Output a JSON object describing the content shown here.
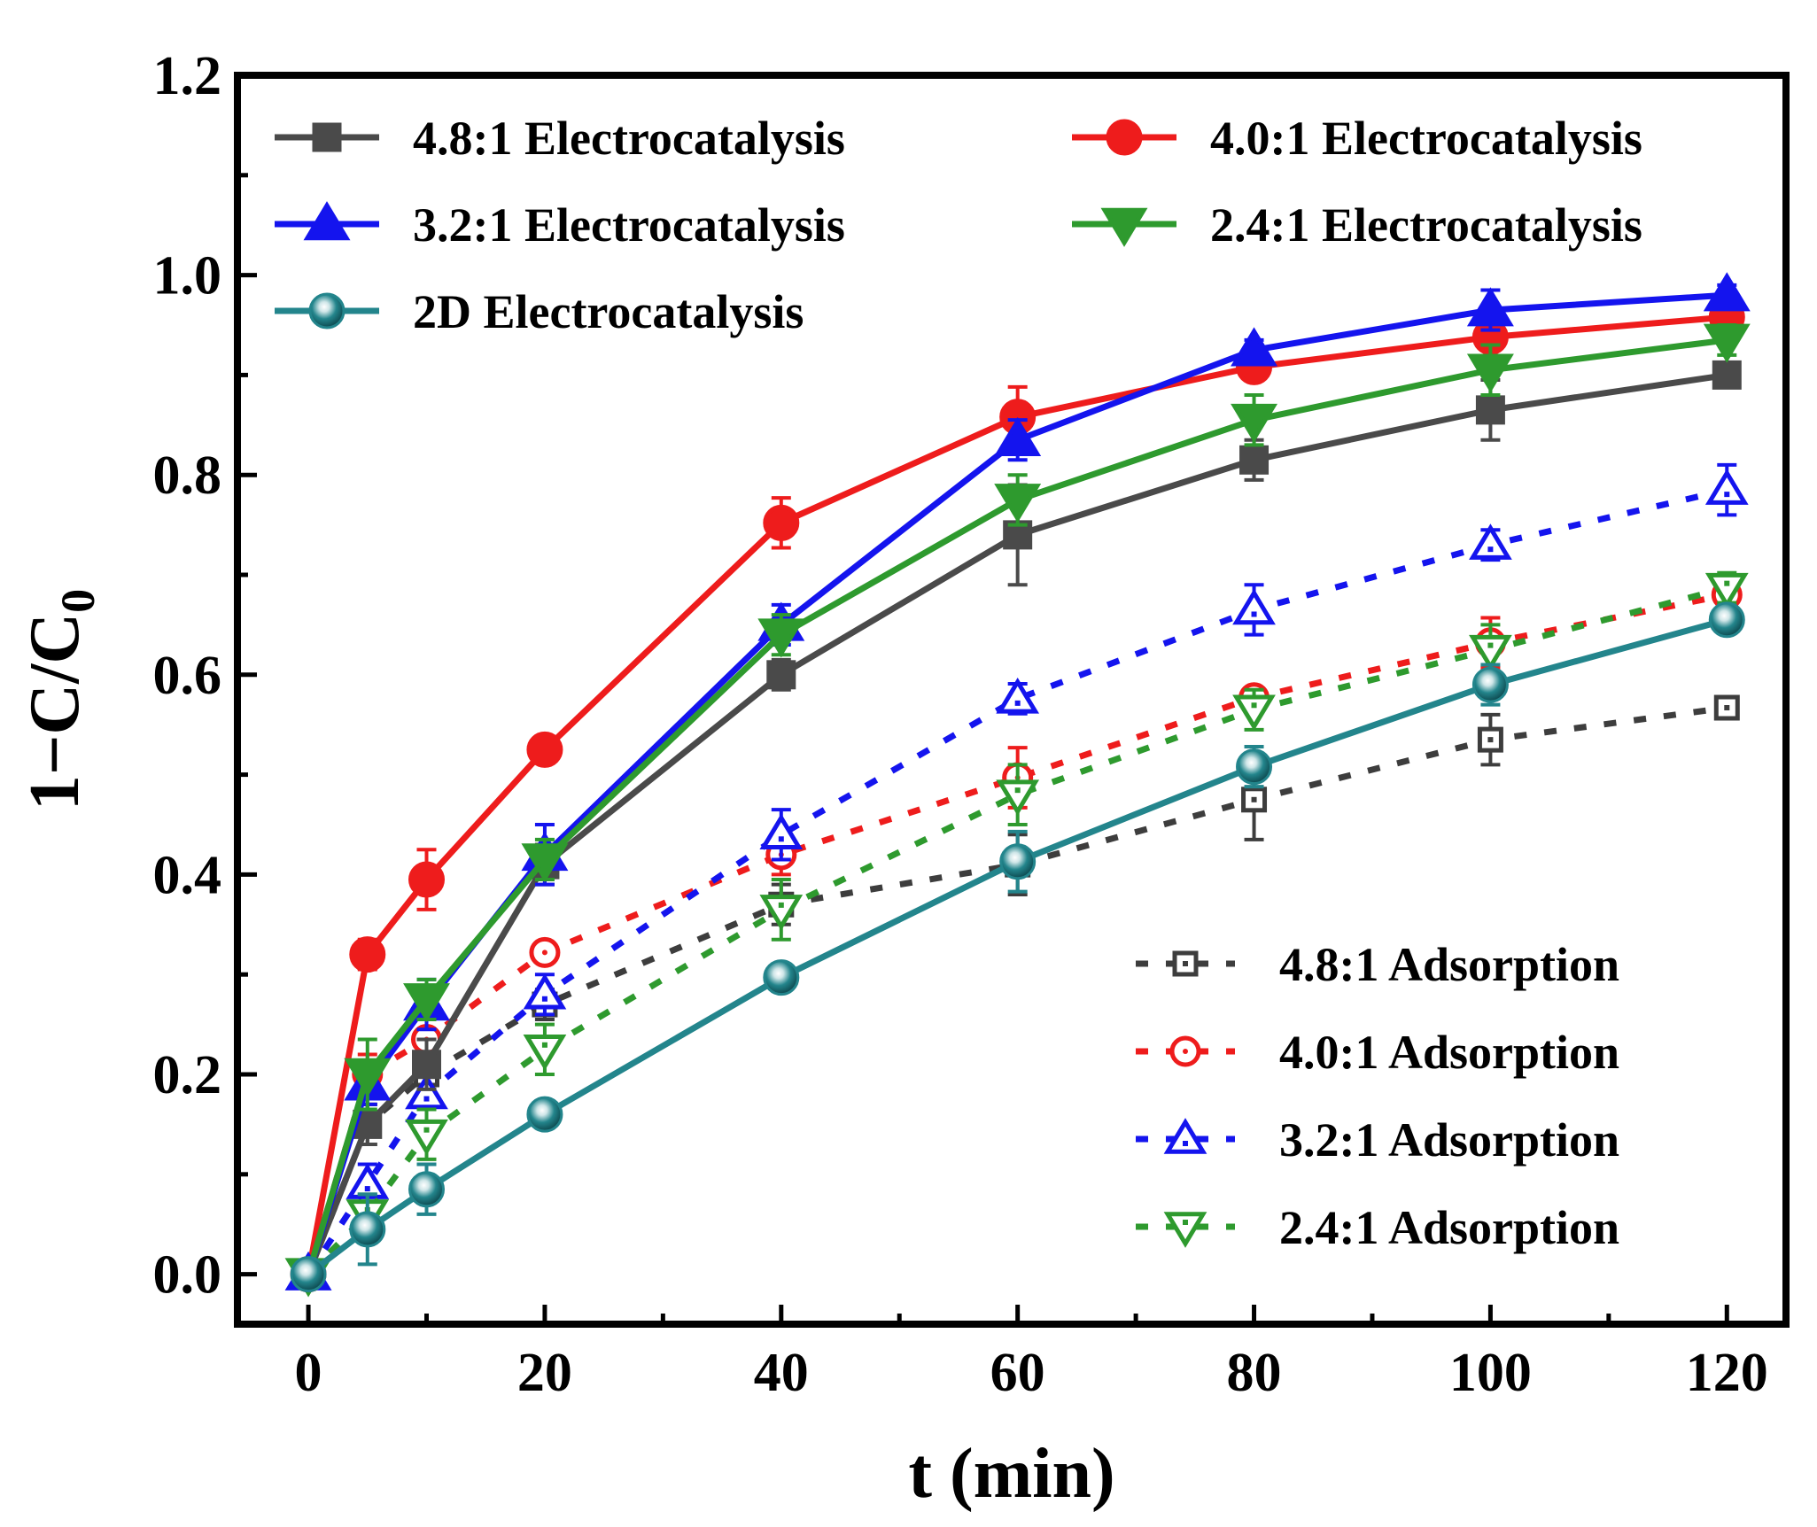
{
  "chart_data": {
    "type": "line",
    "xlabel": "t (min)",
    "ylabel_main": "1−C/C",
    "ylabel_sub": "0",
    "xlim": [
      -6,
      125
    ],
    "ylim": [
      -0.05,
      1.2
    ],
    "xticks": [
      0,
      20,
      40,
      60,
      80,
      100,
      120
    ],
    "xtick_labels": [
      "0",
      "20",
      "40",
      "60",
      "80",
      "100",
      "120"
    ],
    "yticks": [
      0.0,
      0.2,
      0.4,
      0.6,
      0.8,
      1.0,
      1.2
    ],
    "ytick_labels": [
      "0.0",
      "0.2",
      "0.4",
      "0.6",
      "0.8",
      "1.0",
      "1.2"
    ],
    "x": [
      0,
      5,
      10,
      20,
      40,
      60,
      80,
      100,
      120
    ],
    "series": [
      {
        "name": "4.8:1 Electrocatalysis",
        "color": "#4a4a4a",
        "marker": "square",
        "filled": true,
        "dashed": false,
        "values": [
          0.0,
          0.15,
          0.21,
          0.41,
          0.6,
          0.74,
          0.815,
          0.865,
          0.9
        ],
        "errors": [
          0.0,
          0.02,
          0.025,
          0.02,
          0.015,
          0.05,
          0.02,
          0.03,
          0.01
        ]
      },
      {
        "name": "4.0:1 Electrocatalysis",
        "color": "#ee1c1c",
        "marker": "circle",
        "filled": true,
        "dashed": false,
        "values": [
          0.0,
          0.32,
          0.395,
          0.525,
          0.752,
          0.858,
          0.908,
          0.938,
          0.958
        ],
        "errors": [
          0.0,
          0.015,
          0.03,
          0.01,
          0.025,
          0.03,
          0.01,
          0.01,
          0.01
        ]
      },
      {
        "name": "3.2:1 Electrocatalysis",
        "color": "#1414ee",
        "marker": "triangle-up",
        "filled": true,
        "dashed": false,
        "values": [
          0.0,
          0.19,
          0.27,
          0.42,
          0.65,
          0.835,
          0.925,
          0.965,
          0.98
        ],
        "errors": [
          0.0,
          0.02,
          0.025,
          0.03,
          0.02,
          0.02,
          0.01,
          0.02,
          0.01
        ]
      },
      {
        "name": "2.4:1 Electrocatalysis",
        "color": "#2e9a2e",
        "marker": "triangle-down",
        "filled": true,
        "dashed": false,
        "values": [
          0.0,
          0.2,
          0.275,
          0.415,
          0.64,
          0.775,
          0.855,
          0.905,
          0.935
        ],
        "errors": [
          0.0,
          0.035,
          0.02,
          0.02,
          0.02,
          0.025,
          0.025,
          0.025,
          0.015
        ]
      },
      {
        "name": "2D Electrocatalysis",
        "color": "#23858c",
        "marker": "sphere",
        "filled": true,
        "dashed": false,
        "values": [
          0.0,
          0.045,
          0.085,
          0.16,
          0.297,
          0.413,
          0.508,
          0.59,
          0.655
        ],
        "errors": [
          0.0,
          0.035,
          0.025,
          0.01,
          0.01,
          0.03,
          0.02,
          0.02,
          0.01
        ]
      },
      {
        "name": "4.8:1 Adsorption",
        "color": "#3d3d3d",
        "marker": "square",
        "filled": false,
        "dashed": true,
        "values": [
          0.0,
          0.15,
          0.2,
          0.27,
          0.37,
          0.41,
          0.475,
          0.535,
          0.567
        ],
        "errors": [
          0.0,
          0.02,
          0.02,
          0.015,
          0.02,
          0.03,
          0.04,
          0.025,
          0.01
        ]
      },
      {
        "name": "4.0:1 Adsorption",
        "color": "#ee1c1c",
        "marker": "circle",
        "filled": false,
        "dashed": true,
        "values": [
          0.0,
          0.2,
          0.235,
          0.322,
          0.42,
          0.497,
          0.577,
          0.632,
          0.68
        ],
        "errors": [
          0.0,
          0.02,
          0.025,
          0.01,
          0.02,
          0.03,
          0.01,
          0.025,
          0.02
        ]
      },
      {
        "name": "3.2:1 Adsorption",
        "color": "#1414ee",
        "marker": "triangle-up",
        "filled": false,
        "dashed": true,
        "values": [
          0.0,
          0.09,
          0.18,
          0.28,
          0.44,
          0.576,
          0.665,
          0.73,
          0.785
        ],
        "errors": [
          0.0,
          0.02,
          0.03,
          0.02,
          0.025,
          0.015,
          0.025,
          0.015,
          0.025
        ]
      },
      {
        "name": "2.4:1 Adsorption",
        "color": "#2e9a2e",
        "marker": "triangle-down",
        "filled": false,
        "dashed": true,
        "values": [
          0.0,
          0.06,
          0.14,
          0.225,
          0.365,
          0.48,
          0.565,
          0.625,
          0.687
        ],
        "errors": [
          0.0,
          0.02,
          0.025,
          0.025,
          0.03,
          0.03,
          0.02,
          0.025,
          0.015
        ]
      }
    ],
    "legends": [
      {
        "placement": "top-left",
        "items": [
          0,
          2,
          4
        ]
      },
      {
        "placement": "top-right",
        "items": [
          1,
          3
        ]
      },
      {
        "placement": "bottom-right",
        "items": [
          5,
          6,
          7,
          8
        ]
      }
    ],
    "grid": false
  }
}
